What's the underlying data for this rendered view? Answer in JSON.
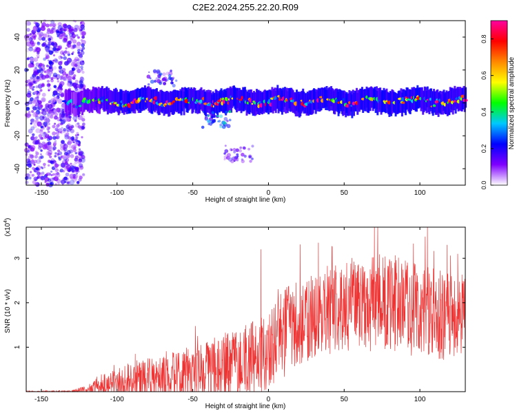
{
  "figure_title": "C2E2.2024.255.22.20.R09",
  "chart_data": [
    {
      "type": "heatmap",
      "title": "",
      "xlabel": "Height of straight line (km)",
      "ylabel": "Frequency (Hz)",
      "xlim": [
        -160,
        130
      ],
      "ylim": [
        -50,
        50
      ],
      "x_ticks": [
        -150,
        -100,
        -50,
        0,
        50,
        100
      ],
      "y_ticks": [
        -40,
        -20,
        0,
        20,
        40
      ],
      "grid": false,
      "colorbar": {
        "label": "Normalized spectral amplitude",
        "range": [
          0,
          0.9
        ],
        "ticks": [
          0.0,
          0.2,
          0.4,
          0.6,
          0.8
        ],
        "tick_labels": [
          "0.0",
          "0.2",
          "0.4",
          "0.6",
          "0.8"
        ],
        "colormap": [
          "#ffffff",
          "#7f00ff",
          "#0000ff",
          "#00c8ff",
          "#00ff00",
          "#ffff00",
          "#ff8800",
          "#ff0000",
          "#ff00a0"
        ]
      },
      "band": {
        "center_frequency_hz": 1,
        "half_width_hz": 6,
        "x_start_km": -135,
        "x_end_km": 130,
        "peak_amplitude": 0.9
      },
      "scatter_region": {
        "x_range_km": [
          -160,
          -122
        ],
        "y_range_hz": [
          -50,
          50
        ],
        "amplitude": 0.2
      },
      "side_features": [
        {
          "x_km": -70,
          "y_hz": 15,
          "amplitude": 0.2
        },
        {
          "x_km": -35,
          "y_hz": -10,
          "amplitude": 0.3
        },
        {
          "x_km": -20,
          "y_hz": -31,
          "amplitude": 0.15
        }
      ]
    },
    {
      "type": "line",
      "title": "",
      "xlabel": "Height of straight line (km)",
      "ylabel": "SNR (10 * v/v)",
      "y_multiplier": "(x10",
      "y_multiplier_exp": "4",
      "y_multiplier_close": ")",
      "xlim": [
        -160,
        130
      ],
      "ylim": [
        0,
        3.7
      ],
      "x_ticks": [
        -150,
        -100,
        -50,
        0,
        50,
        100
      ],
      "y_ticks": [
        1,
        2,
        3
      ],
      "grid": false,
      "color": "#ee3333",
      "envelope": [
        {
          "x": -160,
          "mean": 0.0,
          "spread": 0.02
        },
        {
          "x": -130,
          "mean": 0.0,
          "spread": 0.03
        },
        {
          "x": -120,
          "mean": 0.05,
          "spread": 0.1
        },
        {
          "x": -110,
          "mean": 0.15,
          "spread": 0.25
        },
        {
          "x": -90,
          "mean": 0.25,
          "spread": 0.45
        },
        {
          "x": -70,
          "mean": 0.3,
          "spread": 0.5
        },
        {
          "x": -50,
          "mean": 0.45,
          "spread": 0.6
        },
        {
          "x": -30,
          "mean": 0.5,
          "spread": 0.8
        },
        {
          "x": -10,
          "mean": 0.75,
          "spread": 0.9
        },
        {
          "x": 0,
          "mean": 0.85,
          "spread": 0.9
        },
        {
          "x": 10,
          "mean": 1.3,
          "spread": 1.0
        },
        {
          "x": 20,
          "mean": 1.6,
          "spread": 1.0
        },
        {
          "x": 40,
          "mean": 1.8,
          "spread": 1.0
        },
        {
          "x": 60,
          "mean": 2.0,
          "spread": 1.1
        },
        {
          "x": 80,
          "mean": 2.0,
          "spread": 1.1
        },
        {
          "x": 100,
          "mean": 1.85,
          "spread": 1.1
        },
        {
          "x": 120,
          "mean": 1.7,
          "spread": 1.0
        },
        {
          "x": 130,
          "mean": 1.7,
          "spread": 1.0
        }
      ],
      "peaks": [
        {
          "x": -102,
          "y": 0.6
        },
        {
          "x": -88,
          "y": 0.85
        },
        {
          "x": -5,
          "y": 3.2
        },
        {
          "x": 33,
          "y": 3.35
        },
        {
          "x": 70,
          "y": 3.7
        },
        {
          "x": 105,
          "y": 3.7
        },
        {
          "x": 118,
          "y": 3.3
        },
        {
          "x": 125,
          "y": 3.1
        }
      ]
    }
  ]
}
